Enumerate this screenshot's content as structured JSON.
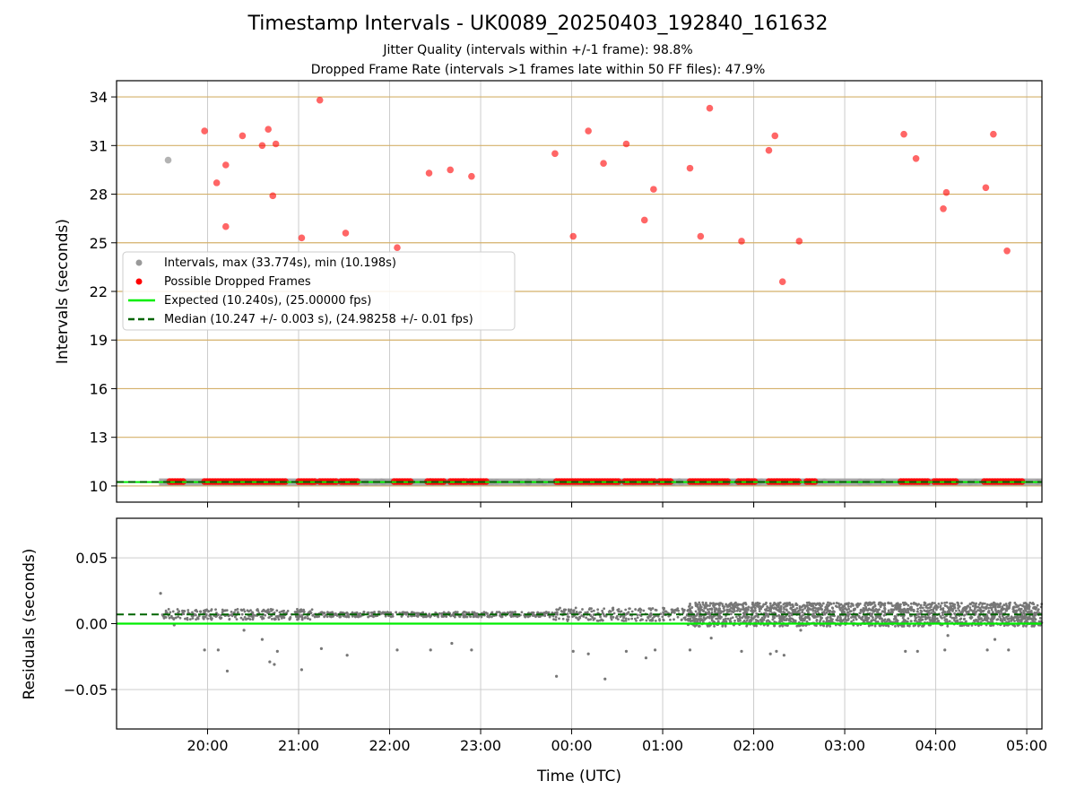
{
  "figure": {
    "title": "Timestamp Intervals - UK0089_20250403_192840_161632",
    "subtitle_1": "Jitter Quality (intervals within +/-1 frame): 98.8%",
    "subtitle_2": "Dropped Frame Rate (intervals >1 frames late within 50 FF files): 47.9%"
  },
  "colors": {
    "intervals": "#999999",
    "dropped": "#ff0000",
    "expected": "#00ee00",
    "median": "#006400",
    "residuals": "#777777",
    "grid_h_top": "#d4b06a",
    "grid": "#cccccc"
  },
  "chart_data": [
    {
      "type": "scatter",
      "xlabel": "",
      "ylabel": "Intervals (seconds)",
      "xlim": [
        "19:00",
        "05:10"
      ],
      "ylim": [
        9,
        35
      ],
      "yticks": [
        10,
        13,
        16,
        19,
        22,
        25,
        28,
        31,
        34
      ],
      "xticks": [
        "20:00",
        "21:00",
        "22:00",
        "23:00",
        "00:00",
        "01:00",
        "02:00",
        "03:00",
        "04:00",
        "05:00"
      ],
      "grid": true,
      "legend": {
        "placement": "center-left",
        "entries": [
          "Intervals, max (33.774s), min (10.198s)",
          "Possible Dropped Frames",
          "Expected (10.240s), (25.00000 fps)",
          "Median (10.247 +/- 0.003 s), (24.98258 +/- 0.01 fps)"
        ]
      },
      "expected_line": 10.24,
      "median_line": 10.247,
      "intervals_outliers": [
        {
          "x": "19:34",
          "y": 30.1
        }
      ],
      "intervals_band": {
        "from": "19:28",
        "to": "05:10",
        "y": 10.24
      },
      "dropped_points": [
        {
          "x": "19:58",
          "y": 31.9
        },
        {
          "x": "20:06",
          "y": 28.7
        },
        {
          "x": "20:12",
          "y": 29.8
        },
        {
          "x": "20:12",
          "y": 26.0
        },
        {
          "x": "20:23",
          "y": 31.6
        },
        {
          "x": "20:36",
          "y": 31.0
        },
        {
          "x": "20:40",
          "y": 32.0
        },
        {
          "x": "20:43",
          "y": 27.9
        },
        {
          "x": "20:45",
          "y": 31.1
        },
        {
          "x": "21:02",
          "y": 25.3
        },
        {
          "x": "21:14",
          "y": 33.8
        },
        {
          "x": "21:31",
          "y": 25.6
        },
        {
          "x": "22:05",
          "y": 24.7
        },
        {
          "x": "22:26",
          "y": 29.3
        },
        {
          "x": "22:40",
          "y": 29.5
        },
        {
          "x": "22:54",
          "y": 29.1
        },
        {
          "x": "23:49",
          "y": 30.5
        },
        {
          "x": "00:01",
          "y": 25.4
        },
        {
          "x": "00:11",
          "y": 31.9
        },
        {
          "x": "00:21",
          "y": 29.9
        },
        {
          "x": "00:36",
          "y": 31.1
        },
        {
          "x": "00:48",
          "y": 26.4
        },
        {
          "x": "00:54",
          "y": 28.3
        },
        {
          "x": "01:18",
          "y": 29.6
        },
        {
          "x": "01:25",
          "y": 25.4
        },
        {
          "x": "01:31",
          "y": 33.3
        },
        {
          "x": "01:52",
          "y": 25.1
        },
        {
          "x": "02:10",
          "y": 30.7
        },
        {
          "x": "02:14",
          "y": 31.6
        },
        {
          "x": "02:19",
          "y": 22.6
        },
        {
          "x": "02:30",
          "y": 25.1
        },
        {
          "x": "03:39",
          "y": 31.7
        },
        {
          "x": "03:47",
          "y": 30.2
        },
        {
          "x": "04:05",
          "y": 27.1
        },
        {
          "x": "04:07",
          "y": 28.1
        },
        {
          "x": "04:33",
          "y": 28.4
        },
        {
          "x": "04:38",
          "y": 31.7
        },
        {
          "x": "04:47",
          "y": 24.5
        }
      ],
      "dropped_near_baseline": [
        [
          "19:35",
          "19:45"
        ],
        [
          "19:58",
          "20:52"
        ],
        [
          "21:00",
          "21:12"
        ],
        [
          "21:14",
          "21:25"
        ],
        [
          "21:28",
          "21:40"
        ],
        [
          "22:03",
          "22:14"
        ],
        [
          "22:25",
          "22:37"
        ],
        [
          "22:40",
          "22:51"
        ],
        [
          "22:53",
          "23:05"
        ],
        [
          "23:50",
          "00:32"
        ],
        [
          "00:35",
          "00:55"
        ],
        [
          "00:58",
          "01:06"
        ],
        [
          "01:18",
          "01:44"
        ],
        [
          "01:50",
          "02:02"
        ],
        [
          "02:10",
          "02:30"
        ],
        [
          "02:35",
          "02:42"
        ],
        [
          "03:37",
          "03:56"
        ],
        [
          "03:59",
          "04:14"
        ],
        [
          "04:32",
          "04:57"
        ]
      ]
    },
    {
      "type": "scatter",
      "xlabel": "Time (UTC)",
      "ylabel": "Residuals (seconds)",
      "xlim": [
        "19:00",
        "05:10"
      ],
      "ylim": [
        -0.08,
        0.08
      ],
      "yticks": [
        0.05,
        0.0,
        -0.05
      ],
      "ytick_labels": [
        "0.05",
        "0.00",
        "−0.05"
      ],
      "xticks": [
        "20:00",
        "21:00",
        "22:00",
        "23:00",
        "00:00",
        "01:00",
        "02:00",
        "03:00",
        "04:00",
        "05:00"
      ],
      "grid": true,
      "expected_line": 0.0,
      "median_line": 0.007,
      "residual_outliers": [
        {
          "x": "19:29",
          "y": 0.023
        },
        {
          "x": "19:38",
          "y": -0.001
        },
        {
          "x": "19:58",
          "y": -0.02
        },
        {
          "x": "20:07",
          "y": -0.02
        },
        {
          "x": "20:13",
          "y": -0.036
        },
        {
          "x": "20:24",
          "y": -0.005
        },
        {
          "x": "20:36",
          "y": -0.012
        },
        {
          "x": "20:41",
          "y": -0.029
        },
        {
          "x": "20:44",
          "y": -0.031
        },
        {
          "x": "20:46",
          "y": -0.021
        },
        {
          "x": "21:02",
          "y": -0.035
        },
        {
          "x": "21:15",
          "y": -0.019
        },
        {
          "x": "21:32",
          "y": -0.024
        },
        {
          "x": "22:05",
          "y": -0.02
        },
        {
          "x": "22:27",
          "y": -0.02
        },
        {
          "x": "22:41",
          "y": -0.015
        },
        {
          "x": "22:54",
          "y": -0.02
        },
        {
          "x": "23:50",
          "y": -0.04
        },
        {
          "x": "00:01",
          "y": -0.021
        },
        {
          "x": "00:11",
          "y": -0.023
        },
        {
          "x": "00:22",
          "y": -0.042
        },
        {
          "x": "00:36",
          "y": -0.021
        },
        {
          "x": "00:49",
          "y": -0.026
        },
        {
          "x": "00:55",
          "y": -0.02
        },
        {
          "x": "01:18",
          "y": -0.02
        },
        {
          "x": "01:32",
          "y": -0.011
        },
        {
          "x": "01:52",
          "y": -0.021
        },
        {
          "x": "02:11",
          "y": -0.023
        },
        {
          "x": "02:15",
          "y": -0.021
        },
        {
          "x": "02:20",
          "y": -0.024
        },
        {
          "x": "02:31",
          "y": -0.005
        },
        {
          "x": "03:40",
          "y": -0.021
        },
        {
          "x": "03:48",
          "y": -0.021
        },
        {
          "x": "04:06",
          "y": -0.02
        },
        {
          "x": "04:08",
          "y": -0.009
        },
        {
          "x": "04:34",
          "y": -0.02
        },
        {
          "x": "04:39",
          "y": -0.012
        },
        {
          "x": "04:48",
          "y": -0.02
        }
      ],
      "residual_clusters": [
        {
          "from": "19:30",
          "to": "21:10",
          "center": 0.007,
          "spread": 0.004
        },
        {
          "from": "21:10",
          "to": "23:48",
          "center": 0.007,
          "spread": 0.002
        },
        {
          "from": "23:48",
          "to": "01:16",
          "center": 0.007,
          "spread": 0.005
        },
        {
          "from": "01:16",
          "to": "05:10",
          "center": 0.007,
          "spread": 0.009
        }
      ]
    }
  ]
}
